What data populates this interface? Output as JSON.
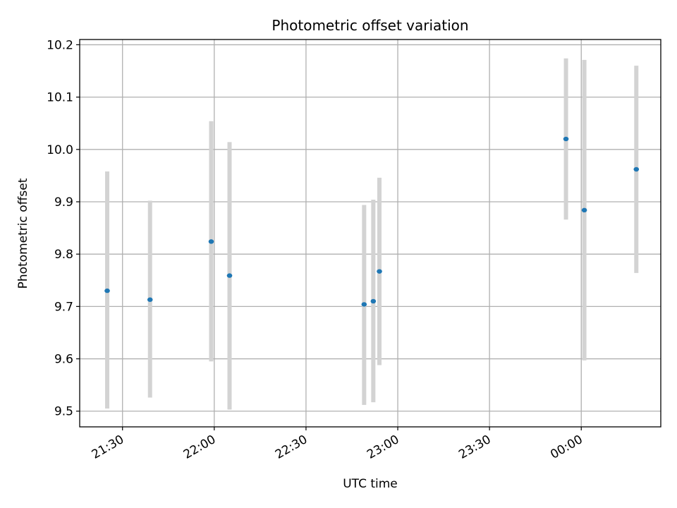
{
  "chart_data": {
    "type": "scatter",
    "title": "Photometric offset variation",
    "xlabel": "UTC time",
    "ylabel": "Photometric offset",
    "x_axis_kind": "time",
    "xlim": [
      "21:16",
      "00:26"
    ],
    "ylim": [
      9.47,
      10.21
    ],
    "x_ticks": [
      "21:30",
      "22:00",
      "22:30",
      "23:00",
      "23:30",
      "00:00"
    ],
    "y_ticks": [
      "9.5",
      "9.6",
      "9.7",
      "9.8",
      "9.9",
      "10.0",
      "10.1",
      "10.2"
    ],
    "grid": true,
    "legend": "none",
    "colors": {
      "point": "#1f77b4",
      "error_bar": "#d3d3d3",
      "grid": "#b0b0b0"
    },
    "points": [
      {
        "time": "21:25",
        "y": 9.73,
        "y_low": 9.505,
        "y_high": 9.958
      },
      {
        "time": "21:39",
        "y": 9.713,
        "y_low": 9.526,
        "y_high": 9.902
      },
      {
        "time": "21:59",
        "y": 9.824,
        "y_low": 9.595,
        "y_high": 10.054
      },
      {
        "time": "22:05",
        "y": 9.759,
        "y_low": 9.503,
        "y_high": 10.014
      },
      {
        "time": "22:49",
        "y": 9.704,
        "y_low": 9.512,
        "y_high": 9.894
      },
      {
        "time": "22:52",
        "y": 9.71,
        "y_low": 9.517,
        "y_high": 9.904
      },
      {
        "time": "22:54",
        "y": 9.767,
        "y_low": 9.588,
        "y_high": 9.946
      },
      {
        "time": "23:55",
        "y": 10.02,
        "y_low": 9.866,
        "y_high": 10.174
      },
      {
        "time": "00:01",
        "y": 9.884,
        "y_low": 9.597,
        "y_high": 10.171
      },
      {
        "time": "00:18",
        "y": 9.962,
        "y_low": 9.764,
        "y_high": 10.16
      }
    ]
  }
}
